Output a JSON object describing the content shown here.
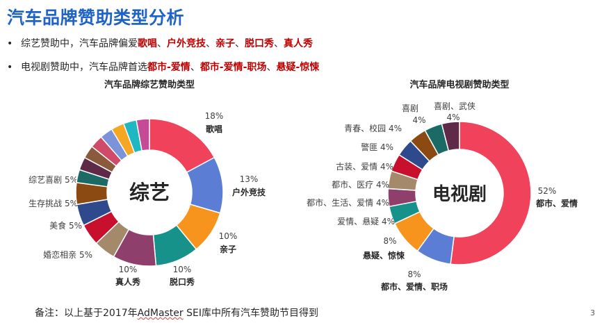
{
  "title": "汽车品牌赞助类型分析",
  "bullets": [
    {
      "marker": "•",
      "prefix": "综艺赞助中，汽车品牌偏爱",
      "highlights": [
        "歌唱",
        "户外竞技",
        "亲子",
        "脱口秀",
        "真人秀"
      ],
      "separator": "、"
    },
    {
      "marker": "•",
      "prefix": "电视剧赞助中，汽车品牌首选",
      "highlights": [
        "都市-爱情",
        "都市-爱情-职场",
        "悬疑-惊悚"
      ],
      "separator": "、"
    }
  ],
  "footnote_prefix": "备注：以上基于2017年",
  "footnote_underlined": "AdMaster",
  "footnote_suffix": " SEI库中所有汽车赞助节目得到",
  "page_number": "3",
  "chart_data": [
    {
      "type": "pie",
      "donut": true,
      "title": "汽车品牌综艺赞助类型",
      "center_label": "综艺",
      "slices": [
        {
          "label": "歌唱",
          "value": 18,
          "display": "18%",
          "color": "#f0425a"
        },
        {
          "label": "户外竞技",
          "value": 13,
          "display": "13%",
          "color": "#5b7ed4"
        },
        {
          "label": "亲子",
          "value": 10,
          "display": "10%",
          "color": "#f7941d"
        },
        {
          "label": "脱口秀",
          "value": 10,
          "display": "10%",
          "color": "#16928a"
        },
        {
          "label": "真人秀",
          "value": 10,
          "display": "10%",
          "color": "#8e3f6c"
        },
        {
          "label": "婚恋相亲",
          "value": 5,
          "display": "5%",
          "color": "#a4896a"
        },
        {
          "label": "美食",
          "value": 5,
          "display": "5%",
          "color": "#c8102e"
        },
        {
          "label": "生存挑战",
          "value": 5,
          "display": "5%",
          "color": "#2e4a8c"
        },
        {
          "label": "综艺喜剧",
          "value": 5,
          "display": "5%",
          "color": "#8b4a12"
        },
        {
          "label": "",
          "value": 3,
          "display": "",
          "color": "#1c6a66"
        },
        {
          "label": "",
          "value": 3,
          "display": "",
          "color": "#5e2a48"
        },
        {
          "label": "",
          "value": 3,
          "display": "",
          "color": "#8b5a3c"
        },
        {
          "label": "",
          "value": 3,
          "display": "",
          "color": "#d04a6a"
        },
        {
          "label": "",
          "value": 3,
          "display": "",
          "color": "#7b93d8"
        },
        {
          "label": "",
          "value": 3,
          "display": "",
          "color": "#f5a623"
        },
        {
          "label": "",
          "value": 3,
          "display": "",
          "color": "#1fb7c1"
        },
        {
          "label": "",
          "value": 3,
          "display": "",
          "color": "#c64b97"
        }
      ]
    },
    {
      "type": "pie",
      "donut": true,
      "title": "汽车品牌电视剧赞助类型",
      "center_label": "电视剧",
      "slices": [
        {
          "label": "都市、爱情",
          "value": 52,
          "display": "52%",
          "color": "#f0425a"
        },
        {
          "label": "都市、爱情、职场",
          "value": 8,
          "display": "8%",
          "color": "#5b7ed4"
        },
        {
          "label": "悬疑、惊悚",
          "value": 8,
          "display": "8%",
          "color": "#f7941d"
        },
        {
          "label": "爱情、悬疑",
          "value": 4,
          "display": "4%",
          "color": "#16928a"
        },
        {
          "label": "都市、生活、爱情",
          "value": 4,
          "display": "4%",
          "color": "#8e3f6c"
        },
        {
          "label": "都市、医疗",
          "value": 4,
          "display": "4%",
          "color": "#a4896a"
        },
        {
          "label": "古装、爱情",
          "value": 4,
          "display": "4%",
          "color": "#c8102e"
        },
        {
          "label": "警匪",
          "value": 4,
          "display": "4%",
          "color": "#2e4a8c"
        },
        {
          "label": "青春、校园",
          "value": 4,
          "display": "4%",
          "color": "#8b4a12"
        },
        {
          "label": "喜剧",
          "value": 4,
          "display": "4%",
          "color": "#1c6a66"
        },
        {
          "label": "喜剧、武侠",
          "value": 4,
          "display": "4%",
          "color": "#5e2a48"
        }
      ]
    }
  ]
}
